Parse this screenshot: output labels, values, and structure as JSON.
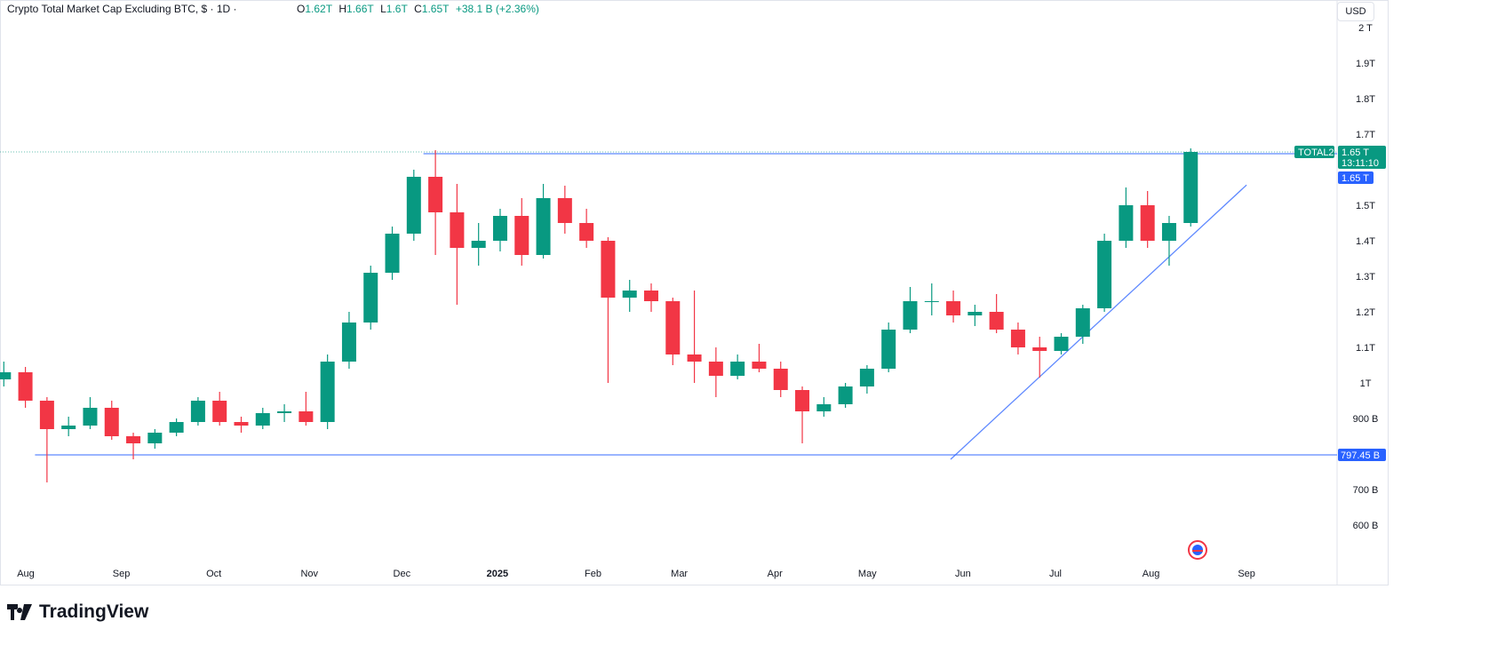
{
  "header": {
    "title": "Crypto Total Market Cap Excluding BTC, $ · 1D ·",
    "ohlc": {
      "o_label": "O",
      "o": "1.62T",
      "h_label": "H",
      "h": "1.66T",
      "l_label": "L",
      "l": "1.6T",
      "c_label": "C",
      "c": "1.65T",
      "change": "+38.1 B (+2.36%)"
    }
  },
  "currency_button": "USD",
  "brand": "TradingView",
  "price_labels": {
    "symbol": "TOTAL2",
    "last_price": "1.65 T",
    "countdown": "13:11:10",
    "resistance": "1.65 T",
    "support": "797.45 B"
  },
  "colors": {
    "up": "#089981",
    "down": "#f23645",
    "drawing": "#2962ff",
    "axis_text": "#131722"
  },
  "chart_data": {
    "type": "candlestick",
    "title": "Crypto Total Market Cap Excluding BTC, $ · 1D ·",
    "ylim": [
      550,
      2020
    ],
    "xlim": [
      "2024-07-24",
      "2025-09-15"
    ],
    "grid": false,
    "y_ticks": [
      {
        "v": 2000,
        "label": "2 T"
      },
      {
        "v": 1900,
        "label": "1.9T"
      },
      {
        "v": 1800,
        "label": "1.8T"
      },
      {
        "v": 1700,
        "label": "1.7T"
      },
      {
        "v": 1500,
        "label": "1.5T"
      },
      {
        "v": 1400,
        "label": "1.4T"
      },
      {
        "v": 1300,
        "label": "1.3T"
      },
      {
        "v": 1200,
        "label": "1.2T"
      },
      {
        "v": 1100,
        "label": "1.1T"
      },
      {
        "v": 1000,
        "label": "1T"
      },
      {
        "v": 900,
        "label": "900 B"
      },
      {
        "v": 700,
        "label": "700 B"
      },
      {
        "v": 600,
        "label": "600 B"
      }
    ],
    "x_ticks": [
      {
        "d": "2024-08-01",
        "label": "Aug"
      },
      {
        "d": "2024-09-01",
        "label": "Sep"
      },
      {
        "d": "2024-10-01",
        "label": "Oct"
      },
      {
        "d": "2024-11-01",
        "label": "Nov"
      },
      {
        "d": "2024-12-01",
        "label": "Dec"
      },
      {
        "d": "2025-01-01",
        "label": "2025"
      },
      {
        "d": "2025-02-01",
        "label": "Feb"
      },
      {
        "d": "2025-03-01",
        "label": "Mar"
      },
      {
        "d": "2025-04-01",
        "label": "Apr"
      },
      {
        "d": "2025-05-01",
        "label": "May"
      },
      {
        "d": "2025-06-01",
        "label": "Jun"
      },
      {
        "d": "2025-07-01",
        "label": "Jul"
      },
      {
        "d": "2025-08-01",
        "label": "Aug"
      },
      {
        "d": "2025-09-01",
        "label": "Sep"
      }
    ],
    "candles": [
      [
        "2024-07-22",
        1010,
        1060,
        990,
        1030
      ],
      [
        "2024-07-29",
        1030,
        1045,
        930,
        950
      ],
      [
        "2024-08-05",
        950,
        960,
        720,
        870
      ],
      [
        "2024-08-12",
        870,
        905,
        850,
        880
      ],
      [
        "2024-08-19",
        880,
        960,
        870,
        930
      ],
      [
        "2024-08-26",
        930,
        950,
        840,
        850
      ],
      [
        "2024-09-02",
        850,
        860,
        785,
        830
      ],
      [
        "2024-09-09",
        830,
        870,
        815,
        860
      ],
      [
        "2024-09-16",
        860,
        900,
        850,
        890
      ],
      [
        "2024-09-23",
        890,
        960,
        880,
        950
      ],
      [
        "2024-09-30",
        950,
        975,
        880,
        890
      ],
      [
        "2024-10-07",
        890,
        905,
        860,
        880
      ],
      [
        "2024-10-14",
        880,
        930,
        870,
        915
      ],
      [
        "2024-10-21",
        915,
        940,
        890,
        920
      ],
      [
        "2024-10-28",
        920,
        975,
        880,
        890
      ],
      [
        "2024-11-04",
        890,
        1080,
        870,
        1060
      ],
      [
        "2024-11-11",
        1060,
        1200,
        1040,
        1170
      ],
      [
        "2024-11-18",
        1170,
        1330,
        1150,
        1310
      ],
      [
        "2024-11-25",
        1310,
        1440,
        1290,
        1420
      ],
      [
        "2024-12-02",
        1420,
        1600,
        1400,
        1580
      ],
      [
        "2024-12-09",
        1580,
        1655,
        1360,
        1480
      ],
      [
        "2024-12-16",
        1480,
        1560,
        1220,
        1380
      ],
      [
        "2024-12-23",
        1380,
        1450,
        1330,
        1400
      ],
      [
        "2024-12-30",
        1400,
        1490,
        1370,
        1470
      ],
      [
        "2025-01-06",
        1470,
        1520,
        1330,
        1360
      ],
      [
        "2025-01-13",
        1360,
        1560,
        1350,
        1520
      ],
      [
        "2025-01-20",
        1520,
        1555,
        1420,
        1450
      ],
      [
        "2025-01-27",
        1450,
        1490,
        1380,
        1400
      ],
      [
        "2025-02-03",
        1400,
        1410,
        1000,
        1240
      ],
      [
        "2025-02-10",
        1240,
        1290,
        1200,
        1260
      ],
      [
        "2025-02-17",
        1260,
        1280,
        1200,
        1230
      ],
      [
        "2025-02-24",
        1230,
        1240,
        1050,
        1080
      ],
      [
        "2025-03-03",
        1080,
        1260,
        1000,
        1060
      ],
      [
        "2025-03-10",
        1060,
        1100,
        960,
        1020
      ],
      [
        "2025-03-17",
        1020,
        1080,
        1010,
        1060
      ],
      [
        "2025-03-24",
        1060,
        1110,
        1030,
        1040
      ],
      [
        "2025-03-31",
        1040,
        1060,
        960,
        980
      ],
      [
        "2025-04-07",
        980,
        990,
        830,
        920
      ],
      [
        "2025-04-14",
        920,
        960,
        905,
        940
      ],
      [
        "2025-04-21",
        940,
        1000,
        930,
        990
      ],
      [
        "2025-04-28",
        990,
        1050,
        970,
        1040
      ],
      [
        "2025-05-05",
        1040,
        1170,
        1030,
        1150
      ],
      [
        "2025-05-12",
        1150,
        1270,
        1140,
        1230
      ],
      [
        "2025-05-19",
        1230,
        1280,
        1190,
        1230
      ],
      [
        "2025-05-26",
        1230,
        1260,
        1170,
        1190
      ],
      [
        "2025-06-02",
        1190,
        1220,
        1160,
        1200
      ],
      [
        "2025-06-09",
        1200,
        1250,
        1140,
        1150
      ],
      [
        "2025-06-16",
        1150,
        1170,
        1080,
        1100
      ],
      [
        "2025-06-23",
        1100,
        1130,
        1015,
        1090
      ],
      [
        "2025-06-30",
        1090,
        1140,
        1080,
        1130
      ],
      [
        "2025-07-07",
        1130,
        1220,
        1110,
        1210
      ],
      [
        "2025-07-14",
        1210,
        1420,
        1200,
        1400
      ],
      [
        "2025-07-21",
        1400,
        1550,
        1380,
        1500
      ],
      [
        "2025-07-28",
        1500,
        1540,
        1380,
        1400
      ],
      [
        "2025-08-04",
        1400,
        1470,
        1330,
        1450
      ],
      [
        "2025-08-11",
        1450,
        1660,
        1440,
        1650
      ]
    ],
    "last_close": 1650,
    "drawings": {
      "resistance": {
        "from": "2024-12-08",
        "value": 1650
      },
      "support": {
        "from": "2024-08-04",
        "value": 797.45
      },
      "trendline": {
        "from": [
          "2025-05-28",
          785
        ],
        "to": [
          "2025-09-01",
          1557
        ]
      }
    }
  }
}
